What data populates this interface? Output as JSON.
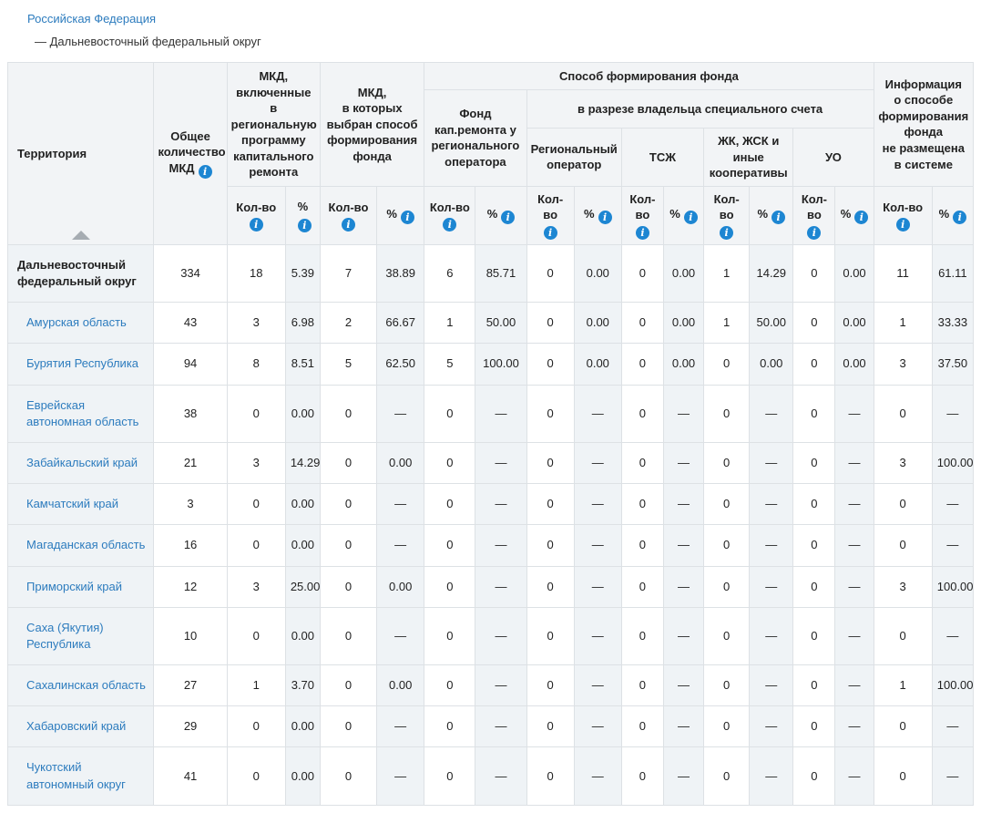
{
  "breadcrumb": {
    "root": "Российская Федерация",
    "current": "— Дальневосточный федеральный округ"
  },
  "table": {
    "labels": {
      "qty": "Кол-во",
      "pct": "%"
    },
    "headers": {
      "territory": "Территория",
      "total": "Общее количество МКД",
      "included": "МКД,\nвключенные в региональную программу капитального ремонта",
      "chosen": "МКД,\nв которых выбран способ формирования фонда",
      "method_group": "Способ формирования фонда",
      "fund_regional_operator": "Фонд кап.ремонта у регионального оператора",
      "special_account_group": "в разрезе владельца специального счета",
      "regional_operator": "Региональный оператор",
      "tsj": "ТСЖ",
      "coops": "ЖК, ЖСК и иные кооперативы",
      "uo": "УО",
      "info_not_placed": "Информация\nо способе\nформирования\nфонда\nне размещена\nв системе"
    },
    "rows": [
      {
        "name": "Дальневосточный федеральный округ",
        "bold": true,
        "values": [
          "334",
          "18",
          "5.39",
          "7",
          "38.89",
          "6",
          "85.71",
          "0",
          "0.00",
          "0",
          "0.00",
          "1",
          "14.29",
          "0",
          "0.00",
          "11",
          "61.11"
        ]
      },
      {
        "name": "Амурская область",
        "bold": false,
        "values": [
          "43",
          "3",
          "6.98",
          "2",
          "66.67",
          "1",
          "50.00",
          "0",
          "0.00",
          "0",
          "0.00",
          "1",
          "50.00",
          "0",
          "0.00",
          "1",
          "33.33"
        ]
      },
      {
        "name": "Бурятия Республика",
        "bold": false,
        "values": [
          "94",
          "8",
          "8.51",
          "5",
          "62.50",
          "5",
          "100.00",
          "0",
          "0.00",
          "0",
          "0.00",
          "0",
          "0.00",
          "0",
          "0.00",
          "3",
          "37.50"
        ]
      },
      {
        "name": "Еврейская автономная область",
        "bold": false,
        "values": [
          "38",
          "0",
          "0.00",
          "0",
          "—",
          "0",
          "—",
          "0",
          "—",
          "0",
          "—",
          "0",
          "—",
          "0",
          "—",
          "0",
          "—"
        ]
      },
      {
        "name": "Забайкальский край",
        "bold": false,
        "values": [
          "21",
          "3",
          "14.29",
          "0",
          "0.00",
          "0",
          "—",
          "0",
          "—",
          "0",
          "—",
          "0",
          "—",
          "0",
          "—",
          "3",
          "100.00"
        ]
      },
      {
        "name": "Камчатский край",
        "bold": false,
        "values": [
          "3",
          "0",
          "0.00",
          "0",
          "—",
          "0",
          "—",
          "0",
          "—",
          "0",
          "—",
          "0",
          "—",
          "0",
          "—",
          "0",
          "—"
        ]
      },
      {
        "name": "Магаданская область",
        "bold": false,
        "values": [
          "16",
          "0",
          "0.00",
          "0",
          "—",
          "0",
          "—",
          "0",
          "—",
          "0",
          "—",
          "0",
          "—",
          "0",
          "—",
          "0",
          "—"
        ]
      },
      {
        "name": "Приморский край",
        "bold": false,
        "values": [
          "12",
          "3",
          "25.00",
          "0",
          "0.00",
          "0",
          "—",
          "0",
          "—",
          "0",
          "—",
          "0",
          "—",
          "0",
          "—",
          "3",
          "100.00"
        ]
      },
      {
        "name": "Саха (Якутия) Республика",
        "bold": false,
        "values": [
          "10",
          "0",
          "0.00",
          "0",
          "—",
          "0",
          "—",
          "0",
          "—",
          "0",
          "—",
          "0",
          "—",
          "0",
          "—",
          "0",
          "—"
        ]
      },
      {
        "name": "Сахалинская область",
        "bold": false,
        "values": [
          "27",
          "1",
          "3.70",
          "0",
          "0.00",
          "0",
          "—",
          "0",
          "—",
          "0",
          "—",
          "0",
          "—",
          "0",
          "—",
          "1",
          "100.00"
        ]
      },
      {
        "name": "Хабаровский край",
        "bold": false,
        "values": [
          "29",
          "0",
          "0.00",
          "0",
          "—",
          "0",
          "—",
          "0",
          "—",
          "0",
          "—",
          "0",
          "—",
          "0",
          "—",
          "0",
          "—"
        ]
      },
      {
        "name": "Чукотский автономный округ",
        "bold": false,
        "values": [
          "41",
          "0",
          "0.00",
          "0",
          "—",
          "0",
          "—",
          "0",
          "—",
          "0",
          "—",
          "0",
          "—",
          "0",
          "—",
          "0",
          "—"
        ]
      }
    ]
  },
  "colors": {
    "link": "#2d7cbe",
    "info_icon": "#1d86d2",
    "header_bg": "#f2f4f6",
    "shade_bg": "#eff3f6",
    "border": "#dde1e5"
  }
}
